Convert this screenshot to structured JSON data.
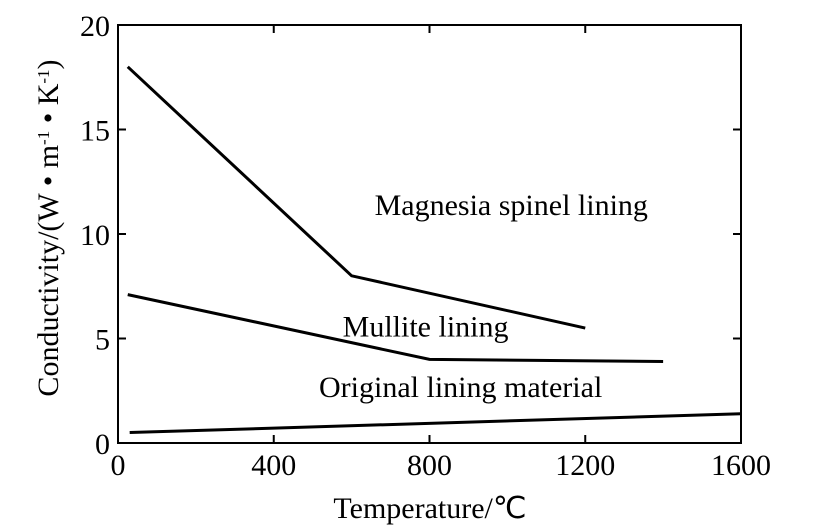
{
  "chart_data": {
    "type": "line",
    "title": "",
    "xlabel": "Temperature/℃",
    "ylabel_parts": {
      "prefix": "Conductivity/(W",
      "dot": "•",
      "m": "m",
      "m_exp": "-1",
      "k": "K",
      "k_exp": "-1",
      "close": ")"
    },
    "xlim": [
      0,
      1600
    ],
    "ylim": [
      0,
      20
    ],
    "x_ticks": [
      {
        "value": 0,
        "label": "0"
      },
      {
        "value": 400,
        "label": "400"
      },
      {
        "value": 800,
        "label": "800"
      },
      {
        "value": 1200,
        "label": "1200"
      },
      {
        "value": 1600,
        "label": "1600"
      }
    ],
    "y_ticks": [
      {
        "value": 0,
        "label": "0"
      },
      {
        "value": 5,
        "label": "5"
      },
      {
        "value": 10,
        "label": "10"
      },
      {
        "value": 15,
        "label": "15"
      },
      {
        "value": 20,
        "label": "20"
      }
    ],
    "grid": false,
    "series": [
      {
        "name": "Magnesia spinel lining",
        "points": [
          [
            25,
            18.0
          ],
          [
            600,
            8.0
          ],
          [
            1200,
            5.5
          ]
        ],
        "label_at": [
          1010,
          10.9
        ]
      },
      {
        "name": "Mullite lining",
        "points": [
          [
            25,
            7.1
          ],
          [
            800,
            4.0
          ],
          [
            1400,
            3.9
          ]
        ],
        "label_at": [
          790,
          5.1
        ]
      },
      {
        "name": "Original lining material",
        "points": [
          [
            30,
            0.5
          ],
          [
            1600,
            1.4
          ]
        ],
        "label_at": [
          880,
          2.2
        ]
      }
    ]
  }
}
